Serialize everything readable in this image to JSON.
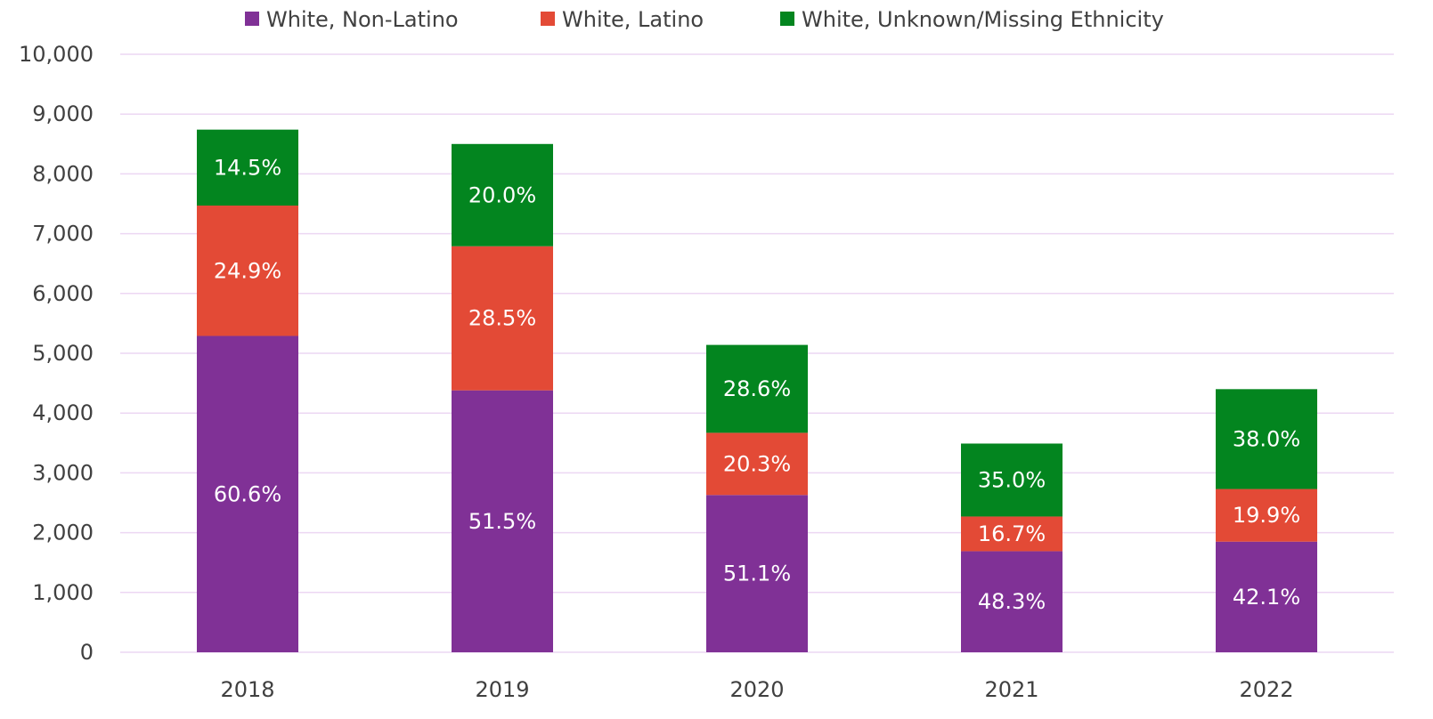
{
  "chart_data": {
    "type": "bar",
    "stacked": true,
    "categories": [
      "2018",
      "2019",
      "2020",
      "2021",
      "2022"
    ],
    "series": [
      {
        "name": "White, Non-Latino",
        "color": "#803196",
        "values": [
          5290,
          4380,
          2630,
          1690,
          1850
        ],
        "labels": [
          "60.6%",
          "51.5%",
          "51.1%",
          "48.3%",
          "42.1%"
        ]
      },
      {
        "name": "White, Latino",
        "color": "#e34a36",
        "values": [
          2180,
          2410,
          1040,
          580,
          880
        ],
        "labels": [
          "24.9%",
          "28.5%",
          "20.3%",
          "16.7%",
          "19.9%"
        ]
      },
      {
        "name": "White, Unknown/Missing Ethnicity",
        "color": "#03851f",
        "values": [
          1270,
          1710,
          1470,
          1220,
          1670
        ],
        "labels": [
          "14.5%",
          "20.0%",
          "28.6%",
          "35.0%",
          "38.0%"
        ]
      }
    ],
    "y_ticks": [
      "0",
      "1,000",
      "2,000",
      "3,000",
      "4,000",
      "5,000",
      "6,000",
      "7,000",
      "8,000",
      "9,000",
      "10,000"
    ],
    "ylim": [
      0,
      10000
    ],
    "grid": true,
    "legend_position": "top"
  }
}
